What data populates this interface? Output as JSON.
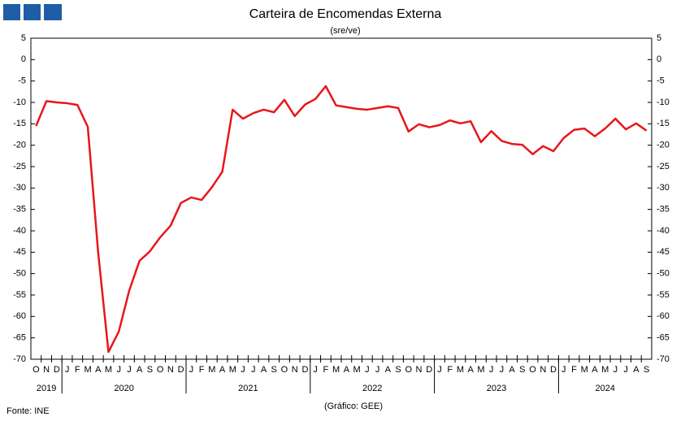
{
  "chart_data": {
    "type": "line",
    "title": "Carteira de Encomendas Externa",
    "subtitle": "(sre/ve)",
    "source": "Fonte: INE",
    "credit": "(Gráfico: GEE)",
    "categories": [
      "O",
      "N",
      "D",
      "J",
      "F",
      "M",
      "A",
      "M",
      "J",
      "J",
      "A",
      "S",
      "O",
      "N",
      "D",
      "J",
      "F",
      "M",
      "A",
      "M",
      "J",
      "J",
      "A",
      "S",
      "O",
      "N",
      "D",
      "J",
      "F",
      "M",
      "A",
      "M",
      "J",
      "J",
      "A",
      "S",
      "O",
      "N",
      "D",
      "J",
      "F",
      "M",
      "A",
      "M",
      "J",
      "J",
      "A",
      "S",
      "O",
      "N",
      "D",
      "J",
      "F",
      "M",
      "A",
      "M",
      "J",
      "J",
      "A",
      "S"
    ],
    "years": [
      "2019",
      "2020",
      "2021",
      "2022",
      "2023",
      "2024"
    ],
    "values": [
      -15.5,
      -9.7,
      -10,
      -10.2,
      -10.6,
      -15.7,
      -45,
      -68.3,
      -63.5,
      -54,
      -47,
      -44.8,
      -41.5,
      -38.8,
      -33.5,
      -32.2,
      -32.8,
      -29.8,
      -26.2,
      -11.7,
      -13.8,
      -12.5,
      -11.7,
      -12.3,
      -9.4,
      -13.2,
      -10.5,
      -9.2,
      -6.2,
      -10.7,
      -11.1,
      -11.5,
      -11.7,
      -11.3,
      -10.9,
      -11.3,
      -16.8,
      -15.1,
      -15.8,
      -15.3,
      -14.2,
      -14.9,
      -14.4,
      -19.3,
      -16.7,
      -19,
      -19.7,
      -19.9,
      -22.1,
      -20.2,
      -21.4,
      -18.3,
      -16.4,
      -16.1,
      -17.9,
      -16.1,
      -13.8,
      -16.3,
      -14.9,
      -16.6
    ],
    "color": "#e8161b",
    "ylim": [
      -70,
      5
    ],
    "yticks": [
      5,
      0,
      -5,
      -10,
      -15,
      -20,
      -25,
      -30,
      -35,
      -40,
      -45,
      -50,
      -55,
      -60,
      -65,
      -70
    ],
    "grid": false
  }
}
